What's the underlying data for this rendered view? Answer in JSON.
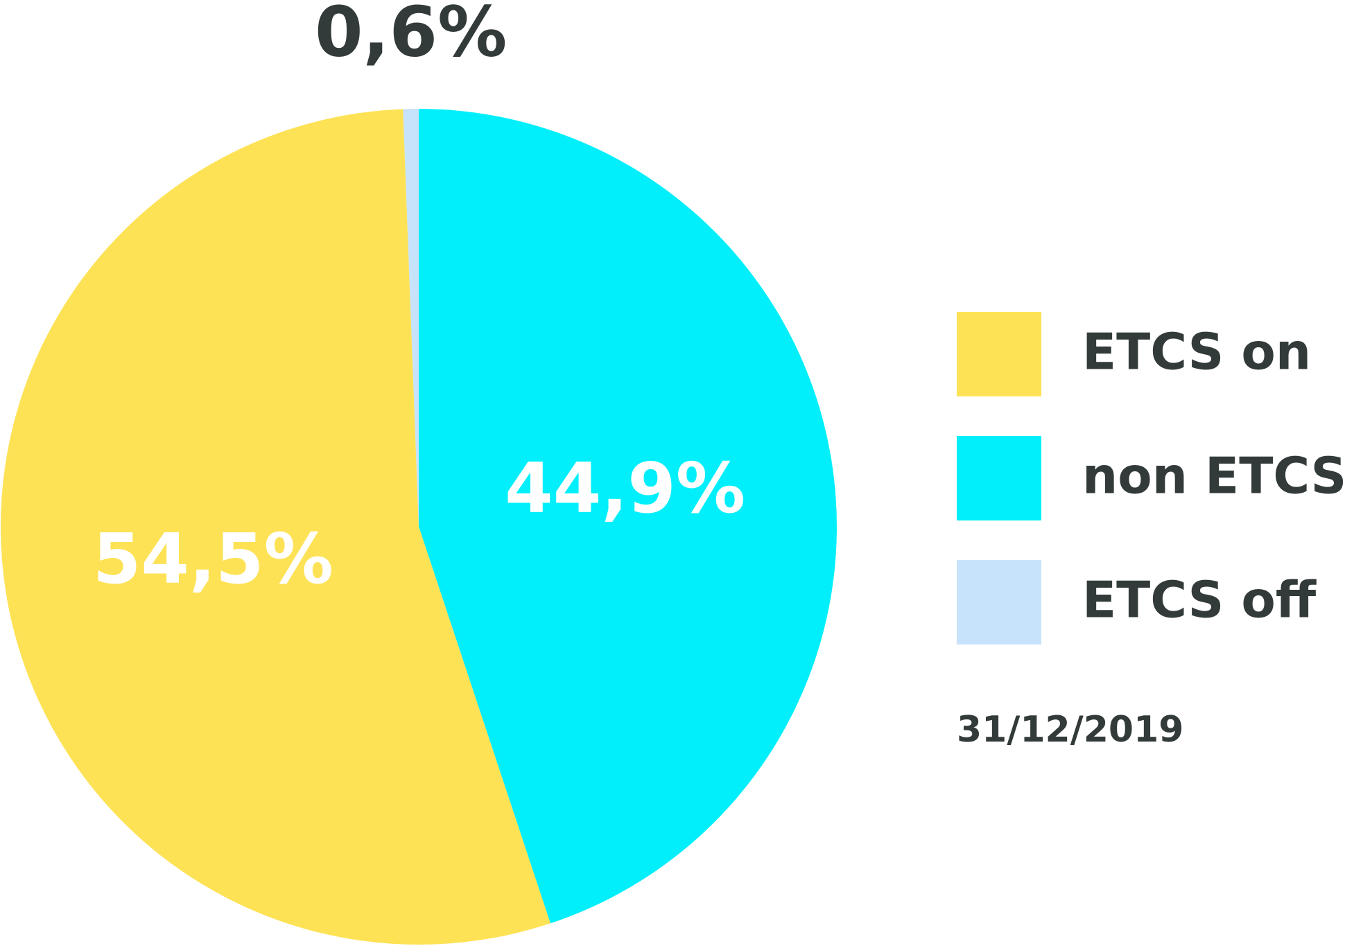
{
  "chart_data": {
    "type": "pie",
    "categories": [
      "ETCS on",
      "non ETCS",
      "ETCS off"
    ],
    "values": [
      54.5,
      44.9,
      0.6
    ],
    "value_labels": [
      "54,5%",
      "44,9%",
      "0,6%"
    ],
    "colors": [
      "#fde256",
      "#00effa",
      "#c7e3fb"
    ],
    "legend": "right",
    "note": "31/12/2019"
  }
}
